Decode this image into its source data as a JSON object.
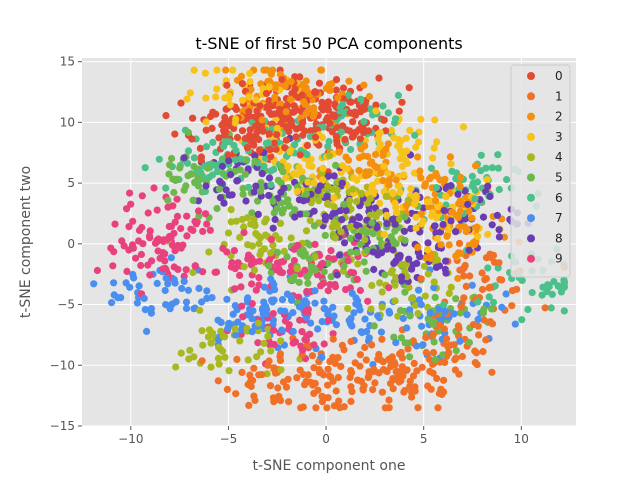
{
  "chart_data": {
    "type": "scatter",
    "title": "t-SNE of first 50 PCA components",
    "xlabel": "t-SNE component one",
    "ylabel": "t-SNE component two",
    "xlim": [
      -12.5,
      12.8
    ],
    "ylim": [
      -15,
      15.3
    ],
    "xticks": [
      -10,
      -5,
      0,
      5,
      10
    ],
    "yticks": [
      -15,
      -10,
      -5,
      0,
      5,
      10,
      15
    ],
    "grid": true,
    "legend_position": "top-right",
    "style": "ggplot",
    "series": [
      {
        "name": "0",
        "color": "#E24A33",
        "cluster_centers": [
          [
            -2.5,
            10.5
          ],
          [
            -1.5,
            11.5
          ],
          [
            0.0,
            9.8
          ],
          [
            -3.5,
            9.0
          ],
          [
            -5.0,
            10.0
          ],
          [
            1.5,
            10.5
          ]
        ]
      },
      {
        "name": "1",
        "color": "#F07028",
        "cluster_centers": [
          [
            0.0,
            -11.0
          ],
          [
            2.5,
            -10.5
          ],
          [
            4.5,
            -11.5
          ],
          [
            6.5,
            -8.5
          ],
          [
            -2.5,
            -11.0
          ],
          [
            8.0,
            -3.0
          ]
        ]
      },
      {
        "name": "2",
        "color": "#F5900F",
        "cluster_centers": [
          [
            -3.0,
            12.5
          ],
          [
            2.5,
            6.0
          ],
          [
            7.0,
            1.0
          ],
          [
            -1.0,
            12.0
          ],
          [
            5.5,
            4.0
          ]
        ]
      },
      {
        "name": "3",
        "color": "#F8C21D",
        "cluster_centers": [
          [
            -4.5,
            12.0
          ],
          [
            2.0,
            4.5
          ],
          [
            -1.5,
            6.5
          ],
          [
            6.0,
            2.5
          ],
          [
            3.5,
            8.0
          ]
        ]
      },
      {
        "name": "4",
        "color": "#A8B81F",
        "cluster_centers": [
          [
            1.5,
            2.0
          ],
          [
            -3.0,
            0.0
          ],
          [
            4.0,
            -3.0
          ],
          [
            0.5,
            4.0
          ],
          [
            -5.0,
            -8.5
          ]
        ]
      },
      {
        "name": "5",
        "color": "#6CB84B",
        "cluster_centers": [
          [
            -6.5,
            5.5
          ],
          [
            2.5,
            0.0
          ],
          [
            -1.0,
            -2.0
          ],
          [
            5.5,
            -6.5
          ],
          [
            -2.0,
            4.5
          ]
        ]
      },
      {
        "name": "6",
        "color": "#4CC08A",
        "cluster_centers": [
          [
            -3.0,
            8.0
          ],
          [
            7.0,
            4.5
          ],
          [
            1.0,
            9.5
          ],
          [
            -6.0,
            6.5
          ],
          [
            10.5,
            -3.0
          ]
        ]
      },
      {
        "name": "7",
        "color": "#4A8EF0",
        "cluster_centers": [
          [
            -8.5,
            -4.0
          ],
          [
            -4.0,
            -6.0
          ],
          [
            2.0,
            -6.5
          ],
          [
            -2.0,
            -5.0
          ],
          [
            6.0,
            -5.5
          ]
        ]
      },
      {
        "name": "8",
        "color": "#6A3CB4",
        "cluster_centers": [
          [
            4.0,
            -1.0
          ],
          [
            2.0,
            1.5
          ],
          [
            -4.0,
            5.0
          ],
          [
            0.0,
            3.5
          ],
          [
            7.0,
            2.5
          ]
        ]
      },
      {
        "name": "9",
        "color": "#E8417E",
        "cluster_centers": [
          [
            -8.0,
            1.5
          ],
          [
            -4.0,
            -2.0
          ],
          [
            -9.0,
            -1.0
          ],
          [
            -2.0,
            -7.0
          ],
          [
            0.0,
            -2.5
          ]
        ]
      }
    ]
  }
}
